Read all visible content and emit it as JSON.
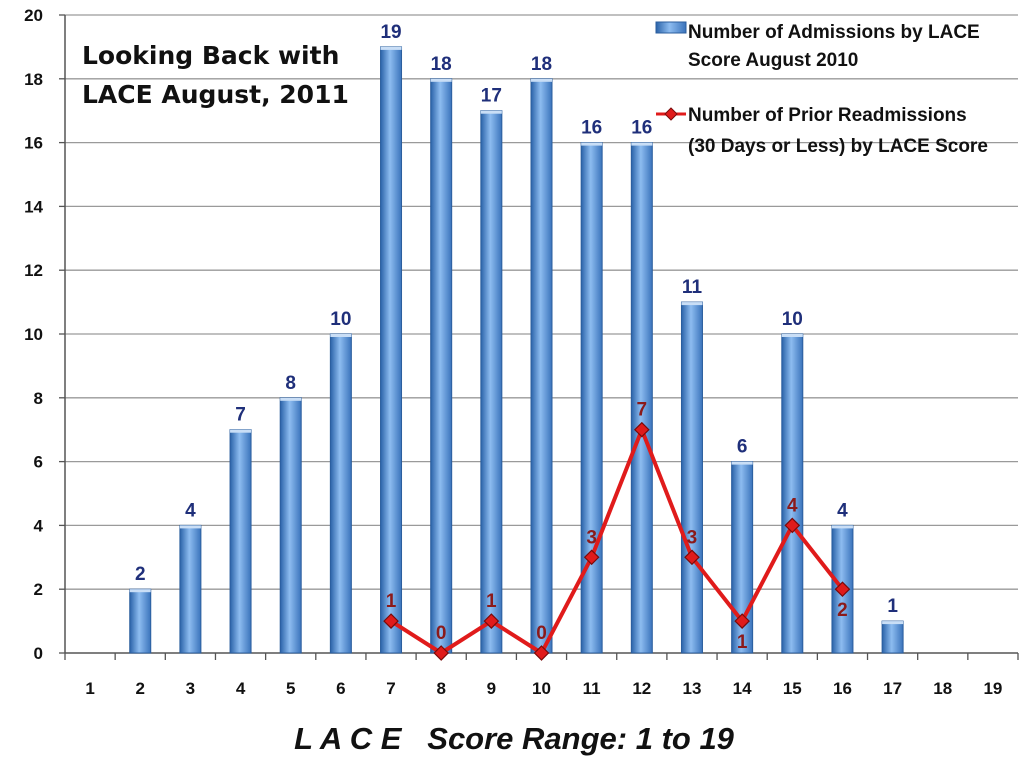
{
  "chart_data": {
    "type": "bar",
    "title": [
      "Looking Back with",
      "LACE August, 2011"
    ],
    "xlabel": "L A C E   Score Range: 1 to 19",
    "ylabel": "",
    "ylim": [
      0,
      20
    ],
    "yticks": [
      0,
      2,
      4,
      6,
      8,
      10,
      12,
      14,
      16,
      18,
      20
    ],
    "grid": true,
    "legend_position": "top-right",
    "categories": [
      "1",
      "2",
      "3",
      "4",
      "5",
      "6",
      "7",
      "8",
      "9",
      "10",
      "11",
      "12",
      "13",
      "14",
      "15",
      "16",
      "17",
      "18",
      "19"
    ],
    "series": [
      {
        "name": [
          "Number of Admissions by LACE",
          "Score August 2010"
        ],
        "type": "bar",
        "color": "#4f8fd6",
        "values": [
          null,
          2,
          4,
          7,
          8,
          10,
          19,
          18,
          17,
          18,
          16,
          16,
          11,
          6,
          10,
          4,
          1,
          null,
          null
        ]
      },
      {
        "name": [
          "Number of Prior Readmissions",
          "(30 Days or Less) by LACE Score"
        ],
        "type": "line",
        "color": "#e01b1b",
        "marker": "diamond",
        "values": [
          null,
          null,
          null,
          null,
          null,
          null,
          1,
          0,
          1,
          0,
          3,
          7,
          3,
          1,
          4,
          2,
          null,
          null,
          null
        ]
      }
    ]
  }
}
